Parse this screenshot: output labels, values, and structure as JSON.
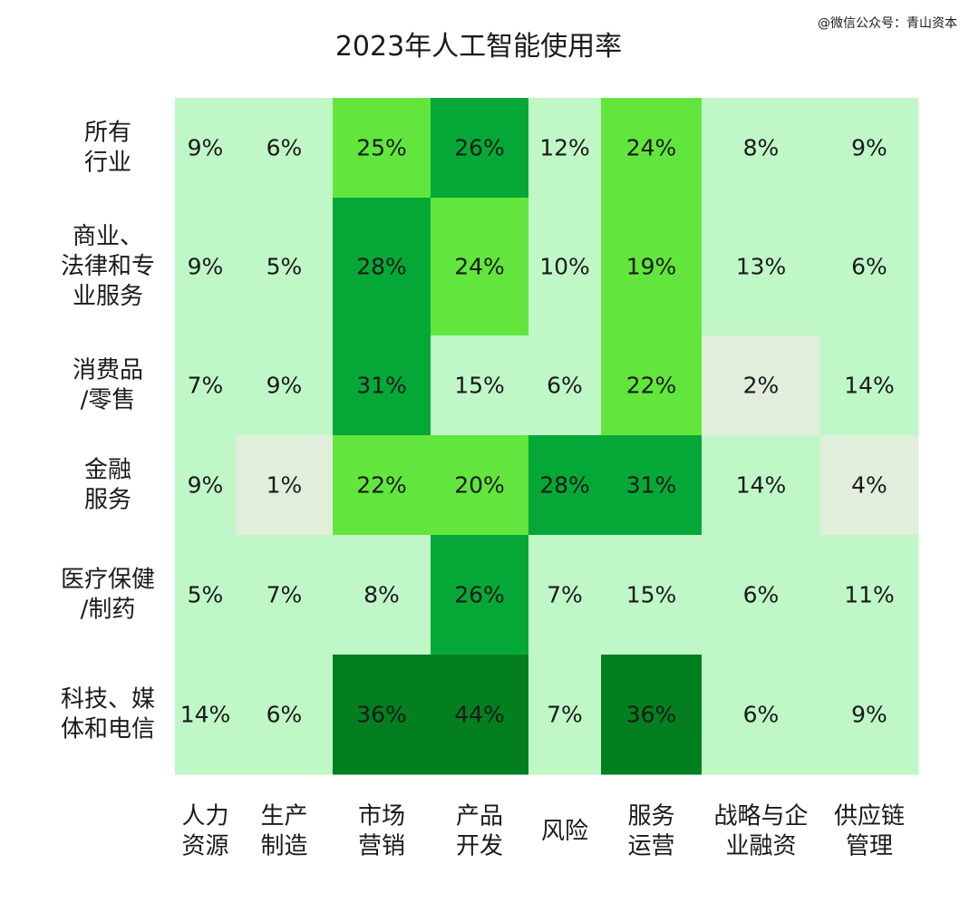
{
  "watermark": "@微信公众号：青山资本",
  "chart_data": {
    "type": "heatmap",
    "title": "2023年人工智能使用率",
    "x_categories": [
      [
        "人力",
        "资源"
      ],
      [
        "生产",
        "制造"
      ],
      [
        "市场",
        "营销"
      ],
      [
        "产品",
        "开发"
      ],
      [
        "风险"
      ],
      [
        "服务",
        "运营"
      ],
      [
        "战略与企",
        "业融资"
      ],
      [
        "供应链",
        "管理"
      ]
    ],
    "y_categories": [
      [
        "所有",
        "行业"
      ],
      [
        "商业、",
        "法律和专",
        "业服务"
      ],
      [
        "消费品",
        "/零售"
      ],
      [
        "金融",
        "服务"
      ],
      [
        "医疗保健",
        "/制药"
      ],
      [
        "科技、媒",
        "体和电信"
      ]
    ],
    "value_unit": "%",
    "values": [
      [
        9,
        6,
        25,
        26,
        12,
        24,
        8,
        9
      ],
      [
        9,
        5,
        28,
        24,
        10,
        19,
        13,
        6
      ],
      [
        7,
        9,
        31,
        15,
        6,
        22,
        2,
        14
      ],
      [
        9,
        1,
        22,
        20,
        28,
        31,
        14,
        4
      ],
      [
        5,
        7,
        8,
        26,
        7,
        15,
        6,
        11
      ],
      [
        14,
        6,
        36,
        44,
        7,
        36,
        6,
        9
      ]
    ],
    "color_scale": [
      {
        "min": 0,
        "max": 4,
        "color": "#e2eedc"
      },
      {
        "min": 5,
        "max": 16,
        "color": "#c0f7c7"
      },
      {
        "min": 17,
        "max": 25,
        "color": "#62e63d"
      },
      {
        "min": 26,
        "max": 32,
        "color": "#05a837"
      },
      {
        "min": 33,
        "max": 100,
        "color": "#047f1f"
      }
    ],
    "legend": "none",
    "grid": false
  }
}
